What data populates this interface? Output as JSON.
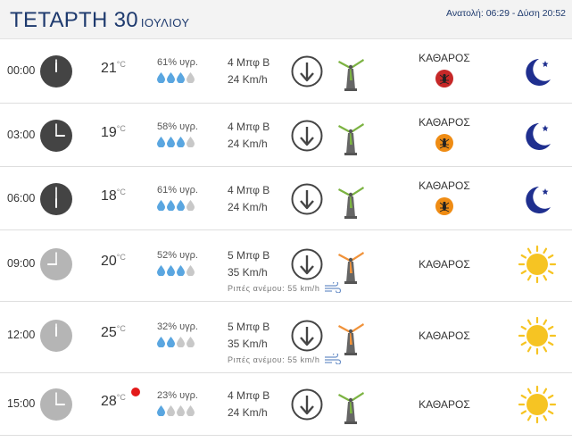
{
  "header": {
    "day": "ΤΕΤΑΡΤΗ 30",
    "month": "ΙΟΥΛΙΟΥ",
    "sun_times": "Ανατολή: 06:29 - Δύση 20:52"
  },
  "unit_temp": "°C",
  "rows": [
    {
      "time": "00:00",
      "clock": "night",
      "temp": "21",
      "humidity": "61% υγρ.",
      "drops_filled": 3,
      "wind_bft": "4 Μπφ Β",
      "wind_kmh": "24 Km/h",
      "turbine_color": "#7cb342",
      "condition": "ΚΑΘΑΡΟΣ",
      "pollen_icon": "mosquito-red-icon",
      "pollen_color": "#c62828",
      "wx": "moon-icon",
      "gust": ""
    },
    {
      "time": "03:00",
      "clock": "night",
      "temp": "19",
      "humidity": "58% υγρ.",
      "drops_filled": 3,
      "wind_bft": "4 Μπφ Β",
      "wind_kmh": "24 Km/h",
      "turbine_color": "#7cb342",
      "condition": "ΚΑΘΑΡΟΣ",
      "pollen_icon": "mosquito-orange-icon",
      "pollen_color": "#ef8c14",
      "wx": "moon-icon",
      "gust": ""
    },
    {
      "time": "06:00",
      "clock": "night",
      "temp": "18",
      "humidity": "61% υγρ.",
      "drops_filled": 3,
      "wind_bft": "4 Μπφ Β",
      "wind_kmh": "24 Km/h",
      "turbine_color": "#7cb342",
      "condition": "ΚΑΘΑΡΟΣ",
      "pollen_icon": "mosquito-orange-icon",
      "pollen_color": "#ef8c14",
      "wx": "moon-icon",
      "gust": ""
    },
    {
      "time": "09:00",
      "clock": "day",
      "temp": "20",
      "humidity": "52% υγρ.",
      "drops_filled": 3,
      "wind_bft": "5 Μπφ Β",
      "wind_kmh": "35 Km/h",
      "turbine_color": "#f0923a",
      "condition": "ΚΑΘΑΡΟΣ",
      "pollen_icon": "",
      "pollen_color": "",
      "wx": "sun-icon",
      "gust": "Ριπές ανέμου: 55 km/h"
    },
    {
      "time": "12:00",
      "clock": "day",
      "temp": "25",
      "humidity": "32% υγρ.",
      "drops_filled": 2,
      "wind_bft": "5 Μπφ Β",
      "wind_kmh": "35 Km/h",
      "turbine_color": "#f0923a",
      "condition": "ΚΑΘΑΡΟΣ",
      "pollen_icon": "",
      "pollen_color": "",
      "wx": "sun-icon",
      "gust": "Ριπές ανέμου: 55 km/h"
    },
    {
      "time": "15:00",
      "clock": "day",
      "temp": "28",
      "humidity": "23% υγρ.",
      "drops_filled": 1,
      "wind_bft": "4 Μπφ Β",
      "wind_kmh": "24 Km/h",
      "turbine_color": "#7cb342",
      "condition": "ΚΑΘΑΡΟΣ",
      "pollen_icon": "",
      "pollen_color": "",
      "wx": "sun-icon",
      "gust": "",
      "alert": true
    }
  ],
  "colors": {
    "clock_night": "#444444",
    "clock_day": "#b5b5b5",
    "drop_filled": "#5aa6e0",
    "drop_empty": "#c8c8c8",
    "moon": "#1f2f8f",
    "sun": "#f6c423"
  }
}
